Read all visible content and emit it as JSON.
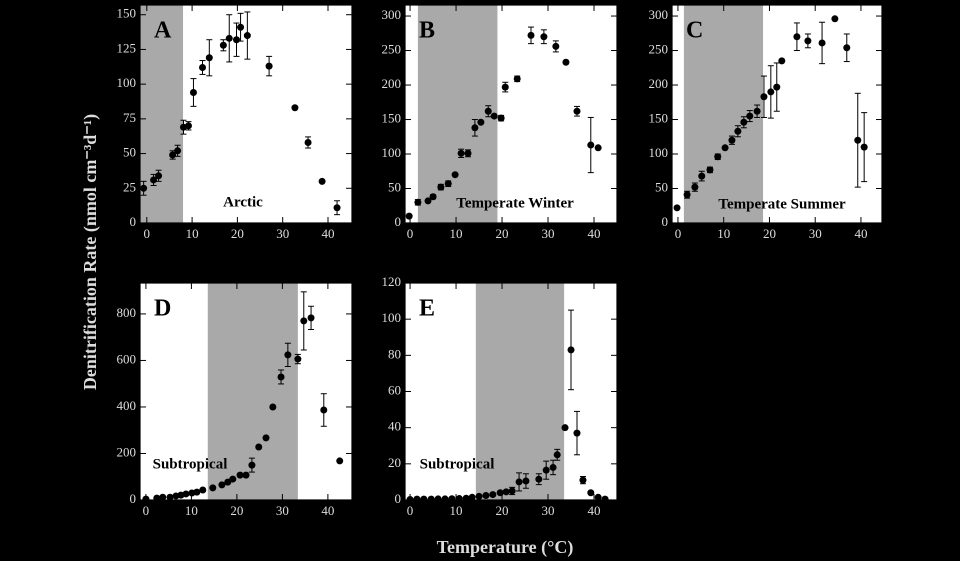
{
  "ylabel": "Denitrification Rate (nmol cm⁻³d⁻¹)",
  "xlabel": "Temperature (°C)",
  "chart_data": [
    {
      "type": "scatter",
      "title": "A",
      "annotation": "Arctic",
      "color": "#000000",
      "shade": [
        -1.5,
        8
      ],
      "xlim": [
        -1.5,
        45.3
      ],
      "ylim": [
        0,
        157
      ],
      "xticks": [
        0,
        10,
        20,
        30,
        40
      ],
      "yticks": [
        0,
        25,
        50,
        75,
        100,
        125,
        150
      ],
      "x": [
        -0.7,
        1.5,
        2.6,
        5.7,
        6.8,
        8.1,
        9.2,
        10.3,
        12.3,
        13.8,
        16.9,
        18.2,
        19.8,
        20.7,
        22.2,
        27,
        32.7,
        35.6,
        38.7,
        42
      ],
      "values": [
        25,
        31,
        34,
        49,
        52,
        69,
        70,
        94,
        112,
        119,
        128,
        133,
        132,
        141,
        135,
        113,
        83,
        58,
        30,
        11
      ],
      "errors": [
        5,
        4,
        4,
        3,
        4,
        5,
        3,
        10,
        5,
        13,
        4,
        17,
        12,
        10,
        17,
        7,
        null,
        4,
        null,
        5
      ]
    },
    {
      "type": "scatter",
      "title": "B",
      "annotation": "Temperate Winter",
      "color": "#000000",
      "shade": [
        1.7,
        19
      ],
      "xlim": [
        -1.1,
        45
      ],
      "ylim": [
        0,
        316
      ],
      "xticks": [
        0,
        10,
        20,
        30,
        40
      ],
      "yticks": [
        0,
        50,
        100,
        150,
        200,
        250,
        300
      ],
      "x": [
        -0.2,
        1.7,
        3.9,
        5,
        6.7,
        8.3,
        9.8,
        11.1,
        12.6,
        14.1,
        15.4,
        17,
        18.3,
        19.8,
        20.7,
        23.3,
        26.3,
        29.1,
        31.7,
        33.9,
        36.3,
        39.3,
        40.9
      ],
      "values": [
        10,
        30,
        32,
        38,
        52,
        57,
        70,
        101,
        101,
        138,
        146,
        162,
        155,
        152,
        197,
        209,
        272,
        270,
        256,
        233,
        162,
        113,
        109
      ],
      "errors": [
        null,
        4,
        null,
        3,
        4,
        4,
        null,
        6,
        5,
        12,
        null,
        8,
        null,
        4,
        7,
        4,
        12,
        10,
        8,
        null,
        7,
        40,
        null
      ]
    },
    {
      "type": "scatter",
      "title": "C",
      "annotation": "Temperate Summer",
      "color": "#000000",
      "shade": [
        1.3,
        18.6
      ],
      "xlim": [
        -1.3,
        44.6
      ],
      "ylim": [
        0,
        316
      ],
      "xticks": [
        0,
        10,
        20,
        30,
        40
      ],
      "yticks": [
        0,
        50,
        100,
        150,
        200,
        250,
        300
      ],
      "x": [
        -0.2,
        2,
        3.7,
        5.2,
        7,
        8.7,
        10.3,
        11.8,
        13.1,
        14.4,
        15.7,
        17.3,
        18.8,
        20.3,
        21.6,
        22.7,
        26,
        28.4,
        31.5,
        34.3,
        36.9,
        39.3,
        40.7
      ],
      "values": [
        22,
        41,
        52,
        68,
        77,
        96,
        109,
        120,
        133,
        146,
        155,
        162,
        183,
        190,
        197,
        235,
        270,
        264,
        261,
        296,
        254,
        120,
        110
      ],
      "errors": [
        null,
        5,
        6,
        7,
        4,
        4,
        null,
        6,
        8,
        8,
        8,
        9,
        30,
        38,
        35,
        null,
        20,
        10,
        30,
        null,
        20,
        68,
        50
      ]
    },
    {
      "type": "scatter",
      "title": "D",
      "annotation": "Subtropical",
      "color": "#000000",
      "shade": [
        13.6,
        33.4
      ],
      "xlim": [
        -1.3,
        45.3
      ],
      "ylim": [
        0,
        933
      ],
      "xticks": [
        0,
        10,
        20,
        30,
        40
      ],
      "yticks": [
        0,
        200,
        400,
        600,
        800
      ],
      "x": [
        0,
        2.4,
        3.7,
        5.3,
        6.6,
        7.7,
        8.8,
        10.1,
        11.2,
        12.5,
        14.7,
        16.7,
        18,
        19.1,
        20.7,
        22,
        23.3,
        24.8,
        26.4,
        27.9,
        29.7,
        31.2,
        33.4,
        34.7,
        36.3,
        39.1,
        42.6
      ],
      "values": [
        4,
        8,
        12,
        12,
        17,
        21,
        26,
        30,
        34,
        43,
        52,
        65,
        77,
        90,
        107,
        107,
        150,
        228,
        267,
        400,
        529,
        624,
        606,
        770,
        783,
        387,
        168
      ],
      "errors": [
        null,
        null,
        null,
        null,
        null,
        null,
        null,
        null,
        null,
        null,
        null,
        null,
        null,
        null,
        null,
        null,
        30,
        null,
        null,
        null,
        30,
        50,
        20,
        125,
        50,
        70,
        null
      ]
    },
    {
      "type": "scatter",
      "title": "E",
      "annotation": "Subtropical",
      "color": "#000000",
      "shade": [
        14.3,
        33.5
      ],
      "xlim": [
        -1.1,
        45
      ],
      "ylim": [
        0,
        120
      ],
      "xticks": [
        0,
        10,
        20,
        30,
        40
      ],
      "yticks": [
        0,
        20,
        40,
        60,
        80,
        100,
        120
      ],
      "x": [
        0,
        1.5,
        3,
        4.6,
        6.1,
        7.6,
        9.1,
        10.7,
        12.2,
        13.5,
        15,
        16.5,
        18,
        19.6,
        20.9,
        22.2,
        23.7,
        25.2,
        28,
        29.6,
        31.1,
        32,
        33.7,
        35,
        36.3,
        37.6,
        39.3,
        40.9,
        42.4
      ],
      "values": [
        0.3,
        0.5,
        0.5,
        0.5,
        0.6,
        0.6,
        0.7,
        0.8,
        1,
        1.5,
        2,
        2.5,
        3,
        4,
        4.5,
        5,
        10,
        10.5,
        11.5,
        16.5,
        18,
        25,
        40,
        83,
        37,
        11,
        4,
        1.5,
        0.5
      ],
      "errors": [
        null,
        null,
        null,
        null,
        null,
        null,
        null,
        null,
        null,
        null,
        null,
        null,
        null,
        null,
        null,
        2,
        5,
        4,
        3,
        5,
        4,
        3,
        null,
        22,
        12,
        2,
        null,
        null,
        null
      ]
    }
  ]
}
